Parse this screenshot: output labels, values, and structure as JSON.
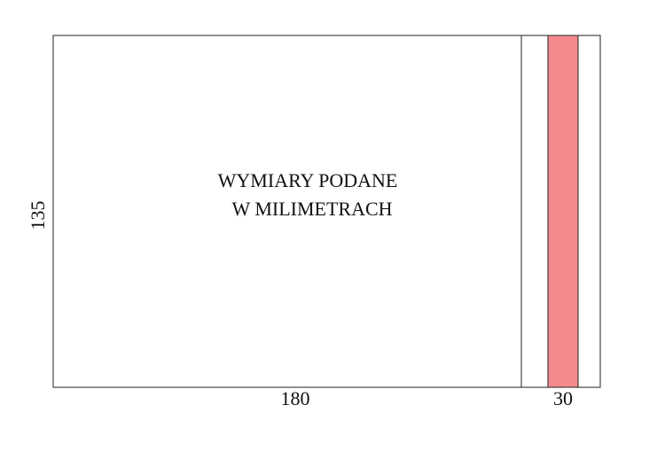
{
  "note": {
    "lines": [
      "WYMIARY PODANE",
      "W MILIMETRACH"
    ]
  },
  "dimensions": {
    "height": "135",
    "width": "180",
    "strip": "30"
  }
}
